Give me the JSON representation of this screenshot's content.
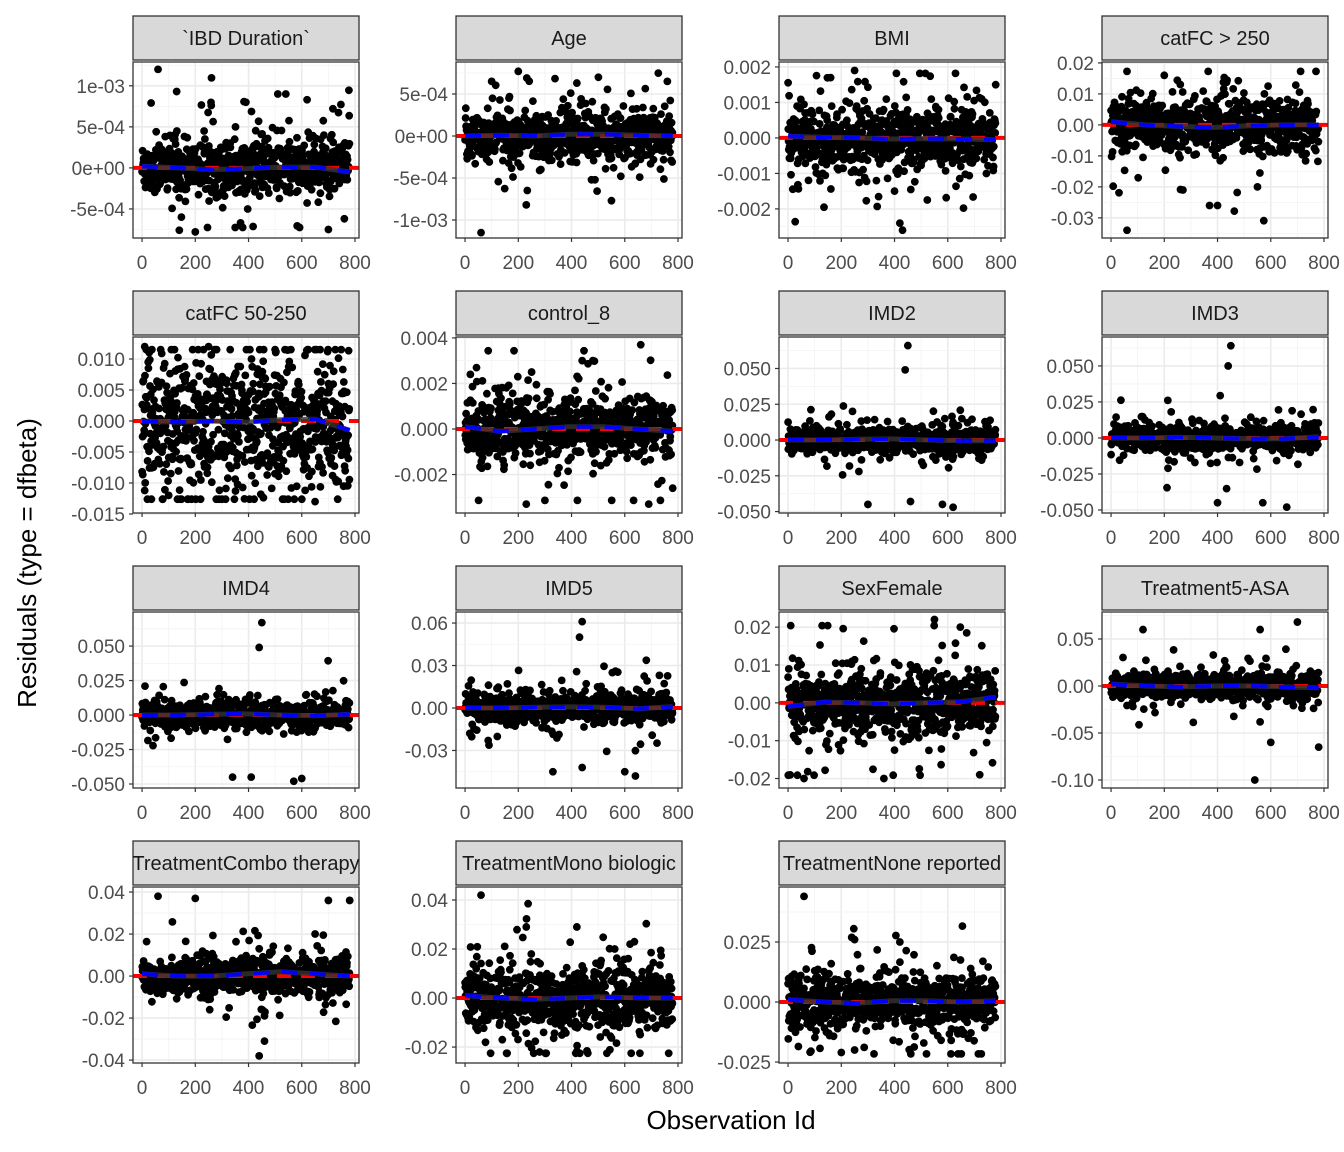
{
  "chart_data": {
    "type": "scatter",
    "title": "",
    "xlabel": "Observation Id",
    "ylabel": "Residuals (type = dfbeta)",
    "xlim": [
      -34,
      815
    ],
    "x_ticks": [
      0,
      200,
      400,
      600,
      800
    ],
    "x_tick_labels": [
      "0",
      "200",
      "400",
      "600",
      "800"
    ],
    "n_points_per_panel": 780,
    "grid": true,
    "smooth_x": [
      0,
      130,
      260,
      390,
      520,
      650,
      780
    ],
    "colors": {
      "points": "#000000",
      "reference": "#ff0000",
      "smooth": "#0000ff",
      "smooth_band": "#333333",
      "strip": "#d9d9d9",
      "grid": "#ebebeb"
    },
    "panels": [
      {
        "label": "`IBD Duration`",
        "ylim": [
          -0.000854,
          0.00129
        ],
        "ticks": [
          -0.0005,
          0,
          0.0005,
          0.001
        ],
        "tick_labels": [
          "-5e-04",
          "0e+00",
          "5e-04",
          "1e-03"
        ],
        "spread": 0.00015,
        "outliers": [
          [
            60,
            0.0012
          ],
          [
            130,
            0.00093
          ],
          [
            510,
            0.0009
          ],
          [
            540,
            0.0009
          ],
          [
            620,
            0.00083
          ],
          [
            260,
            0.00076
          ],
          [
            390,
            0.0008
          ],
          [
            200,
            -0.00078
          ],
          [
            140,
            -0.00076
          ],
          [
            370,
            -0.00067
          ],
          [
            700,
            -0.00075
          ],
          [
            760,
            -0.00062
          ]
        ],
        "smooth": [
          2e-05,
          0,
          -2e-05,
          -1e-05,
          1e-05,
          1e-05,
          -5e-05
        ]
      },
      {
        "label": "Age",
        "ylim": [
          -0.001214,
          0.000881
        ],
        "ticks": [
          -0.001,
          -0.0005,
          0,
          0.0005
        ],
        "tick_labels": [
          "-1e-03",
          "-5e-04",
          "0e+00",
          "5e-04"
        ],
        "spread": 0.00013,
        "outliers": [
          [
            60,
            -0.00115
          ],
          [
            230,
            -0.00082
          ],
          [
            550,
            -0.00077
          ],
          [
            200,
            0.00077
          ],
          [
            100,
            0.00065
          ],
          [
            760,
            0.00065
          ],
          [
            420,
            0.00063
          ]
        ],
        "smooth": [
          0,
          1e-05,
          0,
          2e-05,
          2e-05,
          1e-05,
          0
        ]
      },
      {
        "label": "BMI",
        "ylim": [
          -0.00282,
          0.00214
        ],
        "ticks": [
          -0.002,
          -0.001,
          0,
          0.001,
          0.002
        ],
        "tick_labels": [
          "-0.002",
          "-0.001",
          "0.000",
          "0.001",
          "0.002"
        ],
        "spread": 0.0004,
        "outliers": [
          [
            250,
            0.0019
          ],
          [
            420,
            -0.0024
          ],
          [
            430,
            -0.0026
          ],
          [
            780,
            0.0015
          ],
          [
            160,
            0.0017
          ],
          [
            400,
            -0.0015
          ]
        ],
        "smooth": [
          5e-05,
          2e-05,
          0,
          -3e-05,
          -2e-05,
          -3e-05,
          -5e-05
        ]
      },
      {
        "label": "catFC > 250",
        "ylim": [
          -0.0365,
          0.0203
        ],
        "ticks": [
          -0.03,
          -0.02,
          -0.01,
          0,
          0.01,
          0.02
        ],
        "tick_labels": [
          "-0.03",
          "-0.02",
          "-0.01",
          "0.00",
          "0.01",
          "0.02"
        ],
        "spread": 0.004,
        "outliers": [
          [
            60,
            -0.034
          ],
          [
            370,
            -0.026
          ],
          [
            400,
            -0.026
          ],
          [
            270,
            -0.021
          ],
          [
            550,
            -0.02
          ],
          [
            200,
            0.016
          ]
        ],
        "smooth": [
          0.001,
          0,
          -0.0005,
          -0.0008,
          -0.0003,
          0,
          0
        ]
      },
      {
        "label": "catFC 50-250",
        "ylim": [
          -0.01484,
          0.01355
        ],
        "ticks": [
          -0.015,
          -0.01,
          -0.005,
          0,
          0.005,
          0.01
        ],
        "tick_labels": [
          "-0.015",
          "-0.010",
          "-0.005",
          "0.000",
          "0.005",
          "0.010"
        ],
        "spread": 0.005,
        "outliers": [
          [
            10,
            0.012
          ],
          [
            250,
            0.012
          ],
          [
            650,
            -0.013
          ],
          [
            100,
            -0.012
          ]
        ],
        "smooth": [
          0,
          -0.0002,
          0,
          -0.0002,
          0.0002,
          0.0003,
          -0.0015
        ]
      },
      {
        "label": "control_8",
        "ylim": [
          -0.00369,
          0.00404
        ],
        "ticks": [
          -0.002,
          0,
          0.002,
          0.004
        ],
        "tick_labels": [
          "-0.002",
          "0.000",
          "0.002",
          "0.004"
        ],
        "spread": 0.0006,
        "outliers": [
          [
            660,
            0.0037
          ],
          [
            250,
            0.0025
          ],
          [
            480,
            0.003
          ],
          [
            440,
            0.003
          ],
          [
            20,
            0.0024
          ],
          [
            230,
            -0.0033
          ],
          [
            690,
            -0.0033
          ],
          [
            780,
            -0.0026
          ]
        ],
        "smooth": [
          0.0001,
          -0.0001,
          0,
          0.0001,
          0.0001,
          0,
          -0.0001
        ]
      },
      {
        "label": "IMD2",
        "ylim": [
          -0.051,
          0.072
        ],
        "ticks": [
          -0.05,
          -0.025,
          0,
          0.025,
          0.05
        ],
        "tick_labels": [
          "-0.050",
          "-0.025",
          "0.000",
          "0.025",
          "0.050"
        ],
        "spread": 0.004,
        "outliers": [
          [
            450,
            0.066
          ],
          [
            440,
            0.049
          ],
          [
            460,
            -0.043
          ],
          [
            300,
            -0.045
          ],
          [
            580,
            -0.045
          ],
          [
            620,
            -0.047
          ]
        ],
        "smooth": [
          0,
          0,
          0.0005,
          0.0008,
          0,
          -0.0005,
          -0.0005
        ]
      },
      {
        "label": "IMD3",
        "ylim": [
          -0.0521,
          0.0701
        ],
        "ticks": [
          -0.05,
          -0.025,
          0,
          0.025,
          0.05
        ],
        "tick_labels": [
          "-0.050",
          "-0.025",
          "0.000",
          "0.025",
          "0.050"
        ],
        "spread": 0.004,
        "outliers": [
          [
            450,
            0.064
          ],
          [
            440,
            0.05
          ],
          [
            660,
            -0.048
          ],
          [
            570,
            -0.045
          ],
          [
            400,
            -0.045
          ]
        ],
        "smooth": [
          0,
          0,
          0.0005,
          0,
          -0.0005,
          -0.0005,
          0.0008
        ]
      },
      {
        "label": "IMD4",
        "ylim": [
          -0.0529,
          0.0747
        ],
        "ticks": [
          -0.05,
          -0.025,
          0,
          0.025,
          0.05
        ],
        "tick_labels": [
          "-0.050",
          "-0.025",
          "0.000",
          "0.025",
          "0.050"
        ],
        "spread": 0.004,
        "outliers": [
          [
            450,
            0.067
          ],
          [
            440,
            0.049
          ],
          [
            570,
            -0.048
          ],
          [
            600,
            -0.046
          ],
          [
            340,
            -0.045
          ],
          [
            410,
            -0.045
          ]
        ],
        "smooth": [
          0,
          0,
          0.0005,
          0.0008,
          0,
          -0.0005,
          0.0005
        ]
      },
      {
        "label": "IMD5",
        "ylim": [
          -0.0565,
          0.0678
        ],
        "ticks": [
          -0.03,
          0,
          0.03,
          0.06
        ],
        "tick_labels": [
          "-0.03",
          "0.00",
          "0.03",
          "0.06"
        ],
        "spread": 0.005,
        "outliers": [
          [
            440,
            0.061
          ],
          [
            430,
            0.05
          ],
          [
            640,
            -0.048
          ],
          [
            600,
            -0.045
          ],
          [
            330,
            -0.045
          ],
          [
            440,
            -0.042
          ]
        ],
        "smooth": [
          0,
          0,
          0.0005,
          0.0008,
          0.0005,
          -0.0005,
          0.001
        ]
      },
      {
        "label": "SexFemale",
        "ylim": [
          -0.0225,
          0.024
        ],
        "ticks": [
          -0.02,
          -0.01,
          0,
          0.01,
          0.02
        ],
        "tick_labels": [
          "-0.02",
          "-0.01",
          "0.00",
          "0.01",
          "0.02"
        ],
        "spread": 0.004,
        "outliers": [
          [
            550,
            0.022
          ],
          [
            60,
            -0.02
          ],
          [
            360,
            -0.02
          ],
          [
            720,
            -0.019
          ]
        ],
        "smooth": [
          -0.001,
          0.0002,
          0,
          -0.0003,
          0,
          0.0003,
          0.0015
        ]
      },
      {
        "label": "Treatment5-ASA",
        "ylim": [
          -0.1085,
          0.0787
        ],
        "ticks": [
          -0.1,
          -0.05,
          0,
          0.05
        ],
        "tick_labels": [
          "-0.10",
          "-0.05",
          "0.00",
          "0.05"
        ],
        "spread": 0.006,
        "outliers": [
          [
            540,
            -0.1
          ],
          [
            560,
            0.06
          ],
          [
            120,
            0.06
          ],
          [
            700,
            0.068
          ],
          [
            780,
            -0.065
          ],
          [
            600,
            -0.06
          ]
        ],
        "smooth": [
          0.002,
          0,
          -0.001,
          0,
          0,
          -0.001,
          -0.002
        ]
      },
      {
        "label": "TreatmentCombo therapy",
        "ylim": [
          -0.0414,
          0.0424
        ],
        "ticks": [
          -0.04,
          -0.02,
          0,
          0.02,
          0.04
        ],
        "tick_labels": [
          "-0.04",
          "-0.02",
          "0.00",
          "0.02",
          "0.04"
        ],
        "spread": 0.004,
        "outliers": [
          [
            440,
            -0.038
          ],
          [
            60,
            0.038
          ],
          [
            200,
            0.037
          ],
          [
            700,
            0.036
          ],
          [
            780,
            0.036
          ],
          [
            460,
            -0.031
          ]
        ],
        "smooth": [
          0.001,
          0,
          0,
          0.001,
          0.002,
          0.001,
          0
        ]
      },
      {
        "label": "TreatmentMono biologic",
        "ylim": [
          -0.0265,
          0.0453
        ],
        "ticks": [
          -0.02,
          0,
          0.02,
          0.04
        ],
        "tick_labels": [
          "-0.02",
          "0.00",
          "0.02",
          "0.04"
        ],
        "spread": 0.006,
        "outliers": [
          [
            60,
            0.042
          ],
          [
            230,
            0.029
          ],
          [
            420,
            0.029
          ],
          [
            620,
            0.022
          ],
          [
            280,
            -0.022
          ]
        ],
        "smooth": [
          0.001,
          0,
          -0.0005,
          0,
          0.0005,
          0,
          0
        ]
      },
      {
        "label": "TreatmentNone reported",
        "ylim": [
          -0.0254,
          0.0479
        ],
        "ticks": [
          -0.025,
          0,
          0.025
        ],
        "tick_labels": [
          "-0.025",
          "0.000",
          "0.025"
        ],
        "spread": 0.005,
        "outliers": [
          [
            60,
            0.044
          ],
          [
            250,
            0.026
          ],
          [
            420,
            0.025
          ],
          [
            250,
            -0.02
          ]
        ],
        "smooth": [
          0.001,
          0,
          -0.0005,
          0.0005,
          0.0005,
          0,
          0.0005
        ]
      }
    ]
  }
}
